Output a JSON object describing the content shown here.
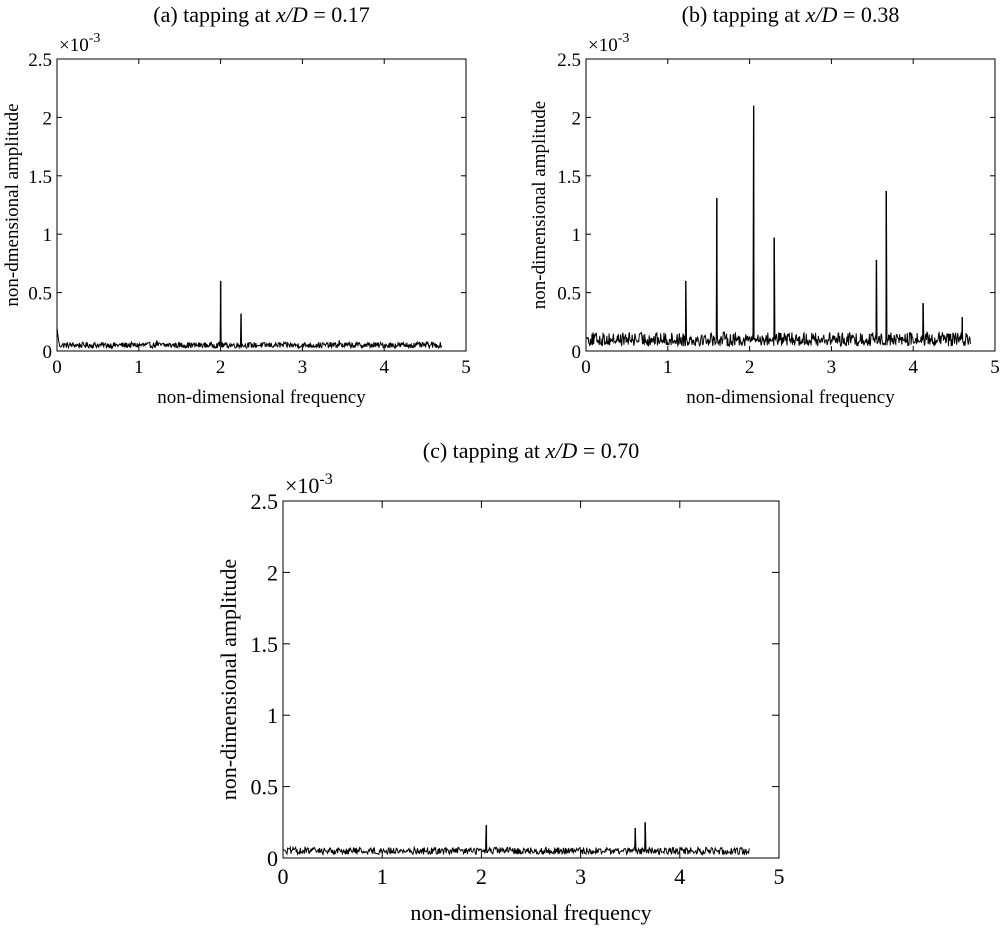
{
  "chart_data": [
    {
      "type": "line",
      "title_prefix": "(a) tapping at ",
      "title_var": "x/D",
      "title_value": " = 0.17",
      "xlabel": "non-dimensional frequency",
      "ylabel": "non-dmensional amplitude",
      "exponent_label": "×10",
      "exponent": "-3",
      "xlim": [
        0,
        5
      ],
      "ylim": [
        0,
        2.5
      ],
      "xticks": [
        "0",
        "1",
        "2",
        "3",
        "4",
        "5"
      ],
      "yticks": [
        "0",
        "0.5",
        "1",
        "1.5",
        "2",
        "2.5"
      ],
      "x_max": 4.7,
      "baseline": 0.05,
      "noise": 0.025,
      "start_value": 0.2,
      "peaks": [
        {
          "x": 2.0,
          "y": 0.6
        },
        {
          "x": 2.25,
          "y": 0.32
        },
        {
          "x": 1.22,
          "y": 0.09
        },
        {
          "x": 3.45,
          "y": 0.09
        }
      ],
      "series": [
        {
          "values_note_unused": ""
        }
      ]
    },
    {
      "type": "line",
      "title_prefix": "(b) tapping at ",
      "title_var": "x/D",
      "title_value": " = 0.38",
      "xlabel": "non-dimensional frequency",
      "ylabel": "non-dimensional amplitude",
      "exponent_label": "×10",
      "exponent": "-3",
      "xlim": [
        0,
        5
      ],
      "ylim": [
        0,
        2.5
      ],
      "xticks": [
        "0",
        "1",
        "2",
        "3",
        "4",
        "5"
      ],
      "yticks": [
        "0",
        "0.5",
        "1",
        "1.5",
        "2",
        "2.5"
      ],
      "x_max": 4.7,
      "baseline": 0.1,
      "noise": 0.06,
      "start_value": 0.12,
      "peaks": [
        {
          "x": 1.22,
          "y": 0.6
        },
        {
          "x": 1.6,
          "y": 1.31
        },
        {
          "x": 2.05,
          "y": 2.1
        },
        {
          "x": 2.3,
          "y": 0.97
        },
        {
          "x": 3.55,
          "y": 0.78
        },
        {
          "x": 3.67,
          "y": 1.37
        },
        {
          "x": 4.12,
          "y": 0.41
        },
        {
          "x": 4.6,
          "y": 0.29
        }
      ]
    },
    {
      "type": "line",
      "title_prefix": "(c) tapping at ",
      "title_var": "x/D",
      "title_value": " = 0.70",
      "xlabel": "non-dimensional frequency",
      "ylabel": "non-dimensional amplitude",
      "exponent_label": "×10",
      "exponent": "-3",
      "xlim": [
        0,
        5
      ],
      "ylim": [
        0,
        2.5
      ],
      "xticks": [
        "0",
        "1",
        "2",
        "3",
        "4",
        "5"
      ],
      "yticks": [
        "0",
        "0.5",
        "1",
        "1.5",
        "2",
        "2.5"
      ],
      "x_max": 4.7,
      "baseline": 0.05,
      "noise": 0.025,
      "start_value": 0.06,
      "peaks": [
        {
          "x": 2.05,
          "y": 0.23
        },
        {
          "x": 3.55,
          "y": 0.21
        },
        {
          "x": 3.65,
          "y": 0.25
        }
      ]
    }
  ]
}
